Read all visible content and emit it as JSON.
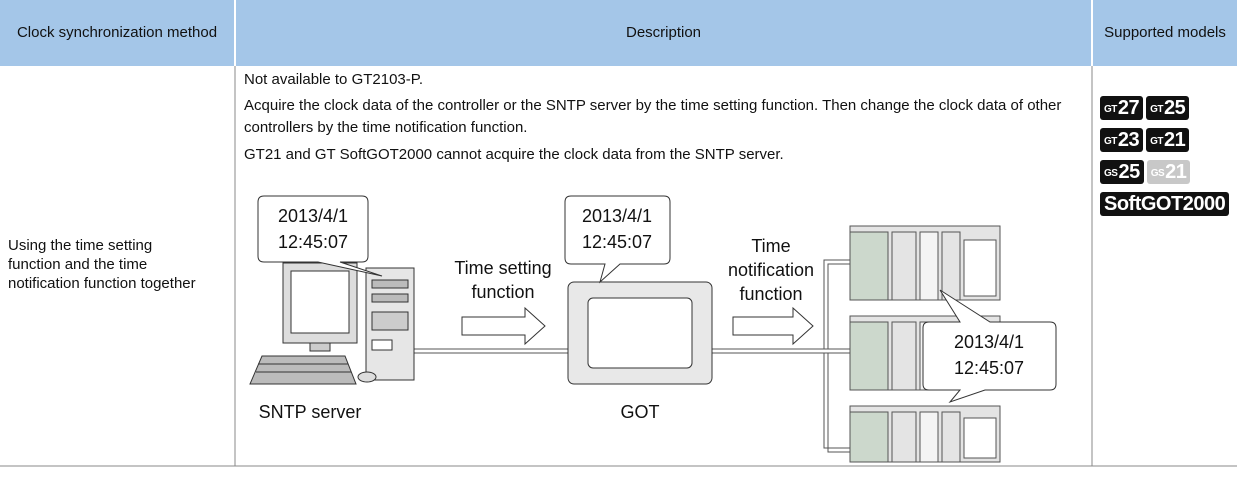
{
  "table": {
    "headers": [
      "Clock synchronization method",
      "Description",
      "Supported models"
    ],
    "rows": [
      {
        "method": "Using the time setting function and the time notification function together",
        "description": [
          "Not available to GT2103-P.",
          "Acquire the clock data of the controller or the SNTP server by the time setting function. Then change the clock data of other controllers by the time notification function.",
          "GT21 and GT SoftGOT2000 cannot acquire the clock data from the SNTP server."
        ],
        "diagram": {
          "server_bubble": [
            "2013/4/1",
            "12:45:07"
          ],
          "got_bubble": [
            "2013/4/1",
            "12:45:07"
          ],
          "controller_bubble": [
            "2013/4/1",
            "12:45:07"
          ],
          "time_setting_label": [
            "Time setting",
            "function"
          ],
          "time_notification_label": [
            "Time",
            "notification",
            "function"
          ],
          "server_label": "SNTP server",
          "got_label": "GOT"
        },
        "models": [
          {
            "prefix": "GT",
            "number": "27",
            "available": true
          },
          {
            "prefix": "GT",
            "number": "25",
            "available": true
          },
          {
            "prefix": "GT",
            "number": "23",
            "available": true
          },
          {
            "prefix": "GT",
            "number": "21",
            "available": true
          },
          {
            "prefix": "GS",
            "number": "25",
            "available": true
          },
          {
            "prefix": "GS",
            "number": "21",
            "available": false
          },
          {
            "prefix": "",
            "number": "SoftGOT2000",
            "available": true
          }
        ]
      }
    ]
  }
}
